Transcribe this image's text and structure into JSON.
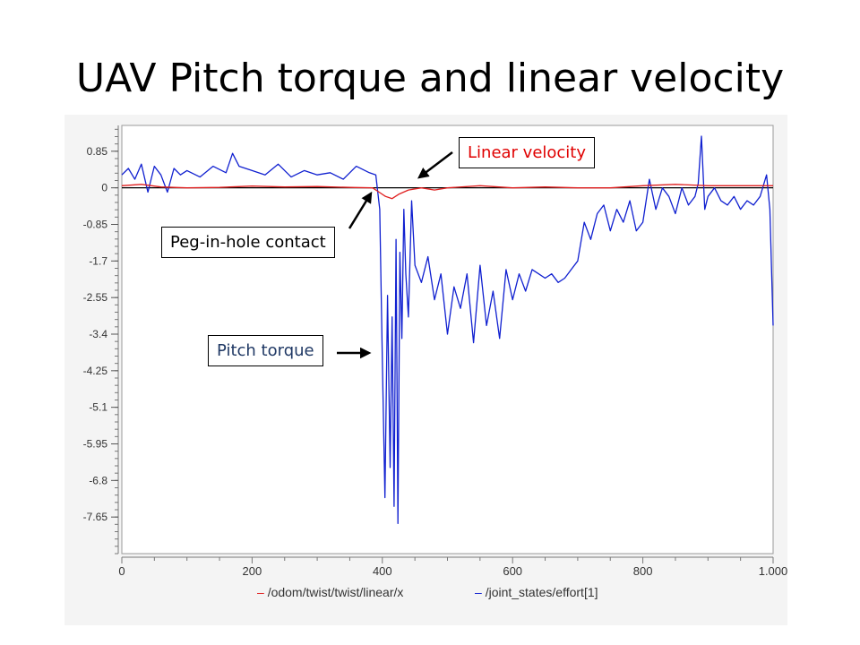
{
  "title": "UAV Pitch torque and linear velocity",
  "annotations": {
    "linear_velocity": "Linear velocity",
    "peg_in_hole": "Peg-in-hole contact",
    "pitch_torque": "Pitch torque"
  },
  "colors": {
    "linear": "#e02020",
    "torque": "#1020d0"
  },
  "chart_data": {
    "type": "line",
    "title": "UAV Pitch torque and linear velocity",
    "xlabel": "",
    "ylabel": "",
    "xlim": [
      0,
      1000
    ],
    "ylim": [
      -8.5,
      1.45
    ],
    "xticks": [
      0,
      200,
      400,
      600,
      800,
      1000
    ],
    "xtick_labels": [
      "0",
      "200",
      "400",
      "600",
      "800",
      "1.000"
    ],
    "yticks": [
      0.85,
      0,
      -0.85,
      -1.7,
      -2.55,
      -3.4,
      -4.25,
      -5.1,
      -5.95,
      -6.8,
      -7.65
    ],
    "ytick_labels": [
      "0.85",
      "0",
      "-0.85",
      "-1.7",
      "-2.55",
      "-3.4",
      "-4.25",
      "-5.1",
      "-5.95",
      "-6.8",
      "-7.65"
    ],
    "legend": [
      "/odom/twist/twist/linear/x",
      "/joint_states/effort[1]"
    ],
    "series": [
      {
        "name": "/odom/twist/twist/linear/x",
        "x": [
          0,
          30,
          60,
          100,
          150,
          200,
          250,
          300,
          350,
          385,
          395,
          405,
          415,
          425,
          440,
          460,
          480,
          500,
          550,
          600,
          650,
          700,
          750,
          800,
          850,
          900,
          950,
          1000
        ],
        "y": [
          0.05,
          0.08,
          0.02,
          0.0,
          0.01,
          0.04,
          0.02,
          0.03,
          0.01,
          0.0,
          -0.1,
          -0.2,
          -0.25,
          -0.15,
          -0.05,
          0.0,
          -0.05,
          0.0,
          0.05,
          0.0,
          0.02,
          0.0,
          0.0,
          0.05,
          0.08,
          0.05,
          0.05,
          0.05
        ]
      },
      {
        "name": "/joint_states/effort[1]",
        "x": [
          0,
          10,
          20,
          30,
          40,
          50,
          60,
          70,
          80,
          90,
          100,
          120,
          140,
          160,
          170,
          180,
          200,
          220,
          240,
          260,
          280,
          300,
          320,
          340,
          360,
          380,
          390,
          396,
          400,
          404,
          408,
          412,
          415,
          418,
          421,
          424,
          427,
          430,
          433,
          436,
          440,
          445,
          450,
          460,
          470,
          480,
          490,
          500,
          510,
          520,
          530,
          540,
          550,
          560,
          570,
          580,
          590,
          600,
          610,
          620,
          630,
          640,
          650,
          660,
          670,
          680,
          690,
          700,
          710,
          720,
          730,
          740,
          750,
          760,
          770,
          780,
          790,
          800,
          810,
          820,
          830,
          840,
          850,
          860,
          870,
          880,
          885,
          890,
          895,
          900,
          910,
          920,
          930,
          940,
          950,
          960,
          970,
          980,
          990,
          995,
          1000
        ],
        "y": [
          0.3,
          0.45,
          0.2,
          0.55,
          -0.1,
          0.5,
          0.3,
          -0.1,
          0.45,
          0.3,
          0.4,
          0.25,
          0.5,
          0.35,
          0.8,
          0.5,
          0.4,
          0.3,
          0.55,
          0.25,
          0.4,
          0.3,
          0.35,
          0.2,
          0.5,
          0.35,
          0.3,
          -0.5,
          -4.0,
          -7.2,
          -2.5,
          -6.5,
          -3.0,
          -7.4,
          -1.2,
          -7.8,
          -1.5,
          -3.5,
          -0.5,
          -2.0,
          -3.0,
          -0.3,
          -1.8,
          -2.2,
          -1.6,
          -2.6,
          -2.0,
          -3.4,
          -2.3,
          -2.8,
          -2.0,
          -3.6,
          -1.8,
          -3.2,
          -2.4,
          -3.5,
          -1.9,
          -2.6,
          -2.0,
          -2.4,
          -1.9,
          -2.0,
          -2.1,
          -2.0,
          -2.2,
          -2.1,
          -1.9,
          -1.7,
          -0.8,
          -1.2,
          -0.6,
          -0.4,
          -1.0,
          -0.5,
          -0.8,
          -0.3,
          -1.0,
          -0.8,
          0.2,
          -0.5,
          0.0,
          -0.2,
          -0.6,
          0.0,
          -0.4,
          -0.2,
          0.1,
          1.2,
          -0.5,
          -0.2,
          0.0,
          -0.3,
          -0.4,
          -0.2,
          -0.5,
          -0.3,
          -0.4,
          -0.2,
          0.3,
          -0.5,
          -3.2
        ]
      }
    ]
  }
}
